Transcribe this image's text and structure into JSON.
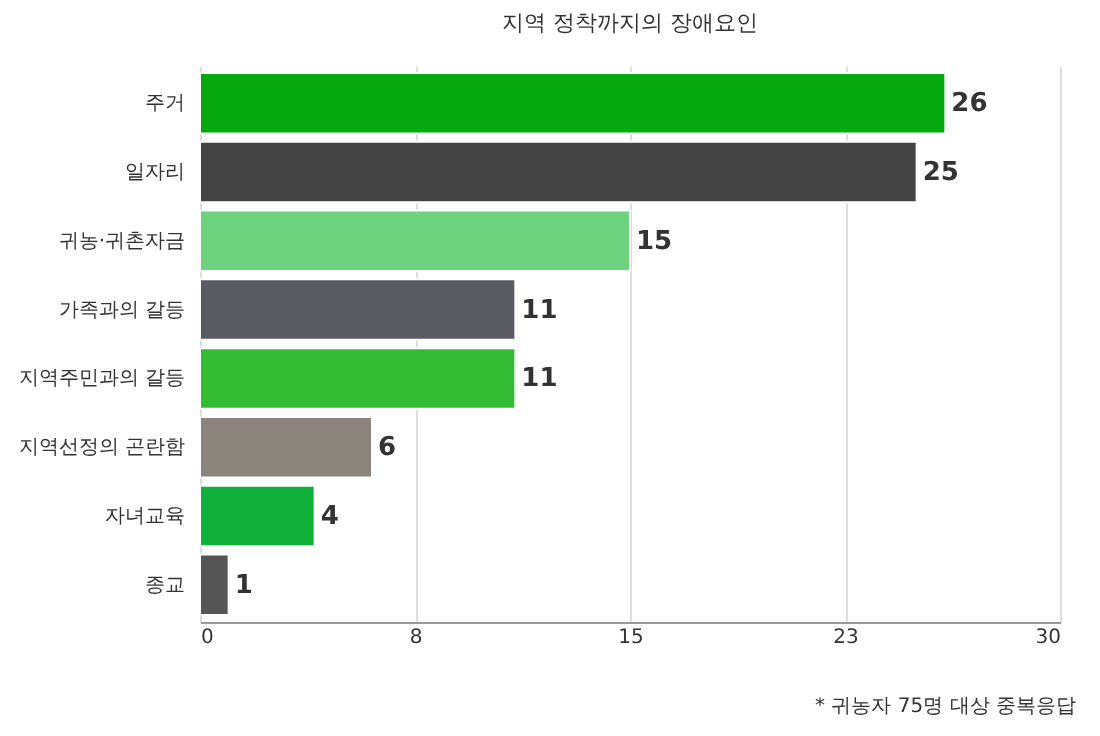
{
  "chart_data": {
    "type": "bar",
    "orientation": "horizontal",
    "title": "지역 정착까지의 장애요인",
    "categories": [
      "주거",
      "일자리",
      "귀농·귀촌자금",
      "가족과의 갈등",
      "지역주민과의 갈등",
      "지역선정의 곤란함",
      "자녀교육",
      "종교"
    ],
    "values": [
      26,
      25,
      15,
      11,
      11,
      6,
      4,
      1
    ],
    "colors": [
      "#05a80f",
      "#444444",
      "#6dd37e",
      "#5a5a62",
      "#33bb33",
      "#8a847c",
      "#11b03a",
      "#555555"
    ],
    "xlim": [
      0,
      30
    ],
    "xticks": [
      0,
      {
        "value": 7.5,
        "label": "8"
      },
      15,
      {
        "value": 22.5,
        "label": "23"
      },
      30
    ],
    "grid": "x",
    "data_labels": true,
    "annotations": [
      "* 귀농자 75명 대상 중복응답"
    ]
  }
}
